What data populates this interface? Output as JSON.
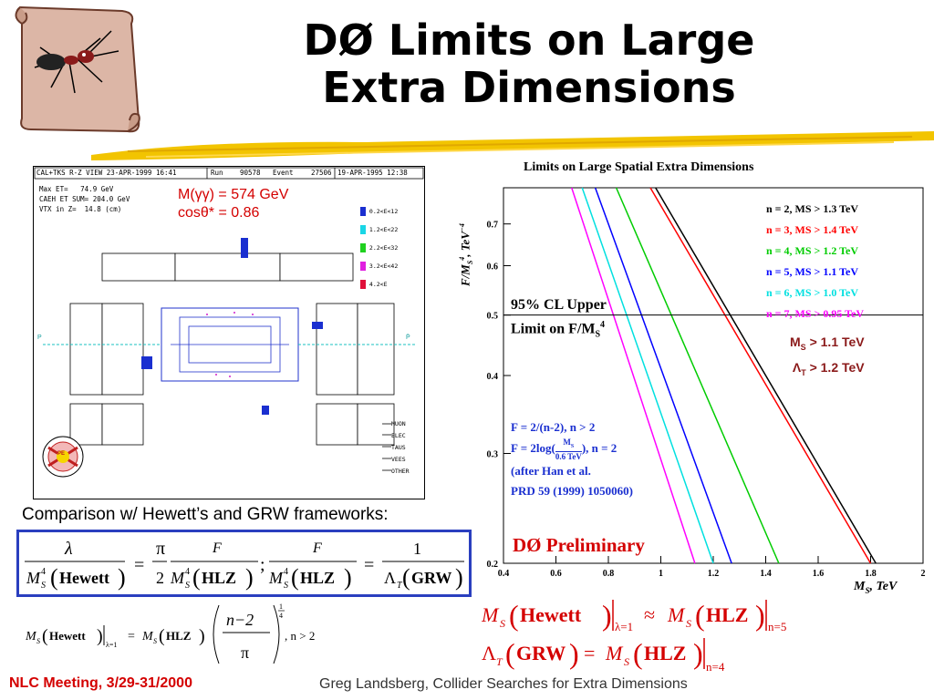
{
  "slide": {
    "title_line1": "DØ Limits on Large",
    "title_line2": "Extra Dimensions",
    "caption": "Comparison w/ Hewett’s and GRW frameworks:",
    "footer_left": "NLC Meeting, 3/29-31/2000",
    "footer_right": "Greg Landsberg, Collider Searches for Extra Dimensions",
    "highlight_color": "#f2c400",
    "footer_left_color": "#d40000"
  },
  "event_display": {
    "header_left": "CAL+TKS R-Z VIEW 23-APR-1999 16:41",
    "header_run_label": "Run",
    "header_run": "90578",
    "header_event_label": "Event",
    "header_event": "27506",
    "header_date": "19-APR-1995 12:38",
    "stat1": "Max ET=   74.9 GeV",
    "stat2": "CAEH ET SUM= 204.0 GeV",
    "stat3": "VTX in Z=  14.8 (cm)",
    "mass": "M(γγ) = 574 GeV",
    "cos": "cosθ* = 0.86",
    "scale": [
      "0.2<E<12",
      "1.2<E<22",
      "2.2<E<32",
      "3.2<E<42",
      "4.2<E"
    ],
    "scale_colors": [
      "#1a2fd0",
      "#19d6e6",
      "#1fd11f",
      "#e01fe0",
      "#e0103a"
    ],
    "legend": [
      "MUON",
      "ELEC",
      "TAUS",
      "VEES",
      "OTHER"
    ],
    "p_label": "P",
    "pbar_label": "P̄",
    "logo": "PE"
  },
  "plot": {
    "title": "Limits on Large Spatial Extra Dimensions",
    "legend": [
      {
        "text": "n = 2, MS > 1.3 TeV",
        "color": "#000000"
      },
      {
        "text": "n = 3, MS > 1.4 TeV",
        "color": "#ff0000"
      },
      {
        "text": "n = 4, MS > 1.2 TeV",
        "color": "#00cc00"
      },
      {
        "text": "n = 5, MS > 1.1 TeV",
        "color": "#0000ff"
      },
      {
        "text": "n = 6, MS > 1.0 TeV",
        "color": "#00e0e0"
      },
      {
        "text": "n = 7, MS > 0.95 TeV",
        "color": "#ff00ff"
      }
    ],
    "cl1": "95% CL Upper",
    "cl2": "Limit on F/M",
    "f1": "F = 2/(n-2), n > 2",
    "f2": "F = 2log(",
    "f2b": "), n = 2",
    "frac_top": "M",
    "frac_bot": "0.6 TeV",
    "han": "(after Han et al.",
    "prd": "PRD 59 (1999) 1050060)",
    "prelim": "DØ Preliminary",
    "xlabel": "M",
    "ylabel": "F/M",
    "ms_note": "M",
    "ms_val": " > 1.1 TeV",
    "lt_val": " > 1.2 TeV"
  },
  "chart_data": {
    "type": "line",
    "title": "Limits on Large Spatial Extra Dimensions",
    "xlabel": "MS, TeV",
    "ylabel": "F/MS4, TeV-4",
    "xlim": [
      0.4,
      2.0
    ],
    "ylim": [
      0.2,
      0.8
    ],
    "yscale": "log",
    "x_ticks": [
      "0.4",
      "0.6",
      "0.8",
      "1",
      "1.2",
      "1.4",
      "1.6",
      "1.8",
      "2"
    ],
    "y_ticks": [
      "0.2",
      "0.3",
      "0.4",
      "0.5",
      "0.6",
      "0.7"
    ],
    "hline": 0.5,
    "series": [
      {
        "name": "n = 2, MS > 1.3 TeV",
        "color": "#000000",
        "x": [
          0.98,
          1.82
        ],
        "y": [
          0.8,
          0.2
        ]
      },
      {
        "name": "n = 3, MS > 1.4 TeV",
        "color": "#ff0000",
        "x": [
          0.96,
          1.8
        ],
        "y": [
          0.8,
          0.2
        ]
      },
      {
        "name": "n = 4, MS > 1.2 TeV",
        "color": "#00cc00",
        "x": [
          0.83,
          1.45
        ],
        "y": [
          0.8,
          0.2
        ]
      },
      {
        "name": "n = 5, MS > 1.1 TeV",
        "color": "#0000ff",
        "x": [
          0.75,
          1.27
        ],
        "y": [
          0.8,
          0.2
        ]
      },
      {
        "name": "n = 6, MS > 1.0 TeV",
        "color": "#00e0e0",
        "x": [
          0.7,
          1.2
        ],
        "y": [
          0.8,
          0.2
        ]
      },
      {
        "name": "n = 7, MS > 0.95 TeV",
        "color": "#ff00ff",
        "x": [
          0.66,
          1.13
        ],
        "y": [
          0.8,
          0.2
        ]
      }
    ]
  },
  "formulas": {
    "lambda": "λ",
    "pi": "π",
    "F": "F",
    "m": "M",
    "s": "S",
    "four": "4",
    "hewett": "Hewett",
    "hlz": "HLZ",
    "grw": "GRW",
    "two": "2",
    "one": "1",
    "eq": "=",
    "semi": ";",
    "lt": "Λ",
    "t": "T",
    "approx": "≈",
    "sub_l1": "λ=1",
    "sub_n5": "n=5",
    "sub_n4": "n=4",
    "nm2": "n−2",
    "quarter_top": "1",
    "quarter_bot": "4",
    "ngt2": ", n > 2"
  }
}
